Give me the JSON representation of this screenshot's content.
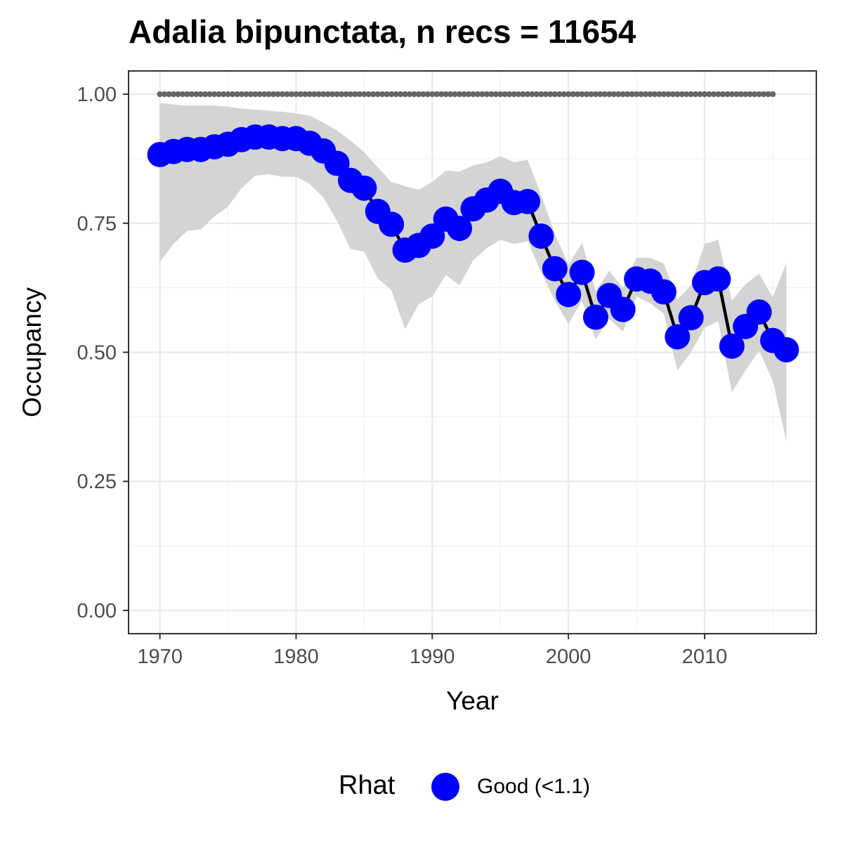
{
  "chart_data": {
    "type": "line",
    "title": "Adalia bipunctata, n recs = 11654",
    "xlabel": "Year",
    "ylabel": "Occupancy",
    "xlim": [
      1967.7,
      2018.2
    ],
    "ylim": [
      -0.045,
      1.045
    ],
    "x_ticks": [
      1970,
      1980,
      1990,
      2000,
      2010
    ],
    "x_tick_labels": [
      "1970",
      "1980",
      "1990",
      "2000",
      "2010"
    ],
    "y_ticks": [
      0,
      0.25,
      0.5,
      0.75,
      1.0
    ],
    "y_tick_labels": [
      "0.00",
      "0.25",
      "0.50",
      "0.75",
      "1.00"
    ],
    "grid": true,
    "legend": {
      "title": "Rhat",
      "position": "bottom",
      "items": [
        {
          "label": "Good (<1.1)",
          "color": "#0000ff"
        }
      ]
    },
    "colors": {
      "points": "#0000ff",
      "line": "#000000",
      "ribbon": "#d4d4d4",
      "reference": "#666666"
    },
    "series": [
      {
        "name": "Good (<1.1)",
        "x": [
          1970,
          1971,
          1972,
          1973,
          1974,
          1975,
          1976,
          1977,
          1978,
          1979,
          1980,
          1981,
          1982,
          1983,
          1984,
          1985,
          1986,
          1987,
          1988,
          1989,
          1990,
          1991,
          1992,
          1993,
          1994,
          1995,
          1996,
          1997,
          1998,
          1999,
          2000,
          2001,
          2002,
          2003,
          2004,
          2005,
          2006,
          2007,
          2008,
          2009,
          2010,
          2011,
          2012,
          2013,
          2014,
          2015,
          2016
        ],
        "y": [
          0.883,
          0.889,
          0.893,
          0.893,
          0.898,
          0.903,
          0.912,
          0.917,
          0.917,
          0.914,
          0.914,
          0.905,
          0.89,
          0.866,
          0.833,
          0.818,
          0.773,
          0.748,
          0.698,
          0.707,
          0.725,
          0.758,
          0.74,
          0.778,
          0.795,
          0.812,
          0.79,
          0.792,
          0.725,
          0.662,
          0.612,
          0.655,
          0.568,
          0.61,
          0.583,
          0.642,
          0.638,
          0.617,
          0.53,
          0.567,
          0.635,
          0.642,
          0.512,
          0.55,
          0.578,
          0.523,
          0.505
        ],
        "lower": [
          0.675,
          0.71,
          0.735,
          0.738,
          0.763,
          0.782,
          0.818,
          0.842,
          0.845,
          0.84,
          0.84,
          0.826,
          0.8,
          0.755,
          0.7,
          0.695,
          0.643,
          0.62,
          0.545,
          0.593,
          0.608,
          0.65,
          0.63,
          0.678,
          0.702,
          0.718,
          0.71,
          0.715,
          0.655,
          0.6,
          0.555,
          0.6,
          0.525,
          0.565,
          0.54,
          0.608,
          0.595,
          0.575,
          0.465,
          0.5,
          0.548,
          0.56,
          0.423,
          0.465,
          0.503,
          0.445,
          0.328
        ],
        "upper": [
          0.983,
          0.98,
          0.978,
          0.978,
          0.978,
          0.976,
          0.972,
          0.97,
          0.968,
          0.966,
          0.963,
          0.958,
          0.945,
          0.93,
          0.91,
          0.888,
          0.858,
          0.83,
          0.822,
          0.815,
          0.83,
          0.852,
          0.85,
          0.862,
          0.868,
          0.88,
          0.868,
          0.873,
          0.805,
          0.73,
          0.67,
          0.712,
          0.618,
          0.658,
          0.625,
          0.683,
          0.683,
          0.672,
          0.602,
          0.63,
          0.71,
          0.718,
          0.6,
          0.632,
          0.652,
          0.607,
          0.673
        ]
      },
      {
        "name": "",
        "type": "reference",
        "x": [
          1970,
          1971,
          1972,
          1973,
          1974,
          1975,
          1976,
          1977,
          1978,
          1979,
          1980,
          1981,
          1982,
          1983,
          1984,
          1985,
          1986,
          1987,
          1988,
          1989,
          1990,
          1991,
          1992,
          1993,
          1994,
          1995,
          1996,
          1997,
          1998,
          1999,
          2000,
          2001,
          2002,
          2003,
          2004,
          2005,
          2006,
          2007,
          2008,
          2009,
          2010,
          2011,
          2012,
          2013,
          2014,
          2015
        ],
        "y": [
          1,
          1,
          1,
          1,
          1,
          1,
          1,
          1,
          1,
          1,
          1,
          1,
          1,
          1,
          1,
          1,
          1,
          1,
          1,
          1,
          1,
          1,
          1,
          1,
          1,
          1,
          1,
          1,
          1,
          1,
          1,
          1,
          1,
          1,
          1,
          1,
          1,
          1,
          1,
          1,
          1,
          1,
          1,
          1,
          1,
          1
        ]
      }
    ]
  }
}
